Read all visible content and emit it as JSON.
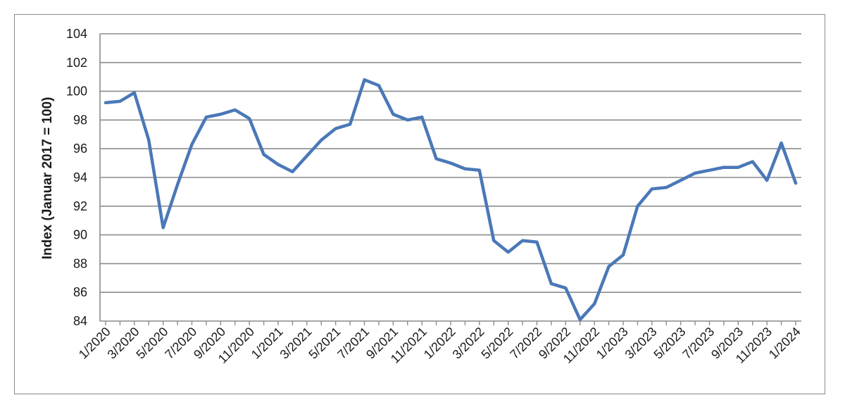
{
  "chart_data": {
    "type": "line",
    "ylabel": "Index (Januar 2017 = 100)",
    "xlabel": "",
    "title": "",
    "ylim": [
      84,
      104
    ],
    "yticks": [
      84,
      86,
      88,
      90,
      92,
      94,
      96,
      98,
      100,
      102,
      104
    ],
    "grid": true,
    "legend": "none",
    "x_tick_labels": [
      "1/2020",
      "3/2020",
      "5/2020",
      "7/2020",
      "9/2020",
      "11/2020",
      "1/2021",
      "3/2021",
      "5/2021",
      "7/2021",
      "9/2021",
      "11/2021",
      "1/2022",
      "3/2022",
      "5/2022",
      "7/2022",
      "9/2022",
      "11/2022",
      "1/2023",
      "3/2023",
      "5/2023",
      "7/2023",
      "9/2023",
      "11/2023",
      "1/2024"
    ],
    "x": [
      "1/2020",
      "2/2020",
      "3/2020",
      "4/2020",
      "5/2020",
      "6/2020",
      "7/2020",
      "8/2020",
      "9/2020",
      "10/2020",
      "11/2020",
      "12/2020",
      "1/2021",
      "2/2021",
      "3/2021",
      "4/2021",
      "5/2021",
      "6/2021",
      "7/2021",
      "8/2021",
      "9/2021",
      "10/2021",
      "11/2021",
      "12/2021",
      "1/2022",
      "2/2022",
      "3/2022",
      "4/2022",
      "5/2022",
      "6/2022",
      "7/2022",
      "8/2022",
      "9/2022",
      "10/2022",
      "11/2022",
      "12/2022",
      "1/2023",
      "2/2023",
      "3/2023",
      "4/2023",
      "5/2023",
      "6/2023",
      "7/2023",
      "8/2023",
      "9/2023",
      "10/2023",
      "11/2023",
      "12/2023",
      "1/2024"
    ],
    "series": [
      {
        "color": "#4a78b8",
        "values": [
          99.2,
          99.3,
          99.9,
          96.6,
          90.5,
          93.5,
          96.3,
          98.2,
          98.4,
          98.7,
          98.1,
          95.6,
          94.9,
          94.4,
          95.5,
          96.6,
          97.4,
          97.7,
          100.8,
          100.4,
          98.4,
          98.0,
          98.2,
          95.3,
          95.0,
          94.6,
          94.5,
          89.6,
          88.8,
          89.6,
          89.5,
          86.6,
          86.3,
          84.1,
          85.2,
          87.8,
          88.6,
          92.0,
          93.2,
          93.3,
          93.8,
          94.3,
          94.5,
          94.7,
          94.7,
          95.1,
          93.8,
          96.4,
          93.6
        ]
      }
    ]
  }
}
